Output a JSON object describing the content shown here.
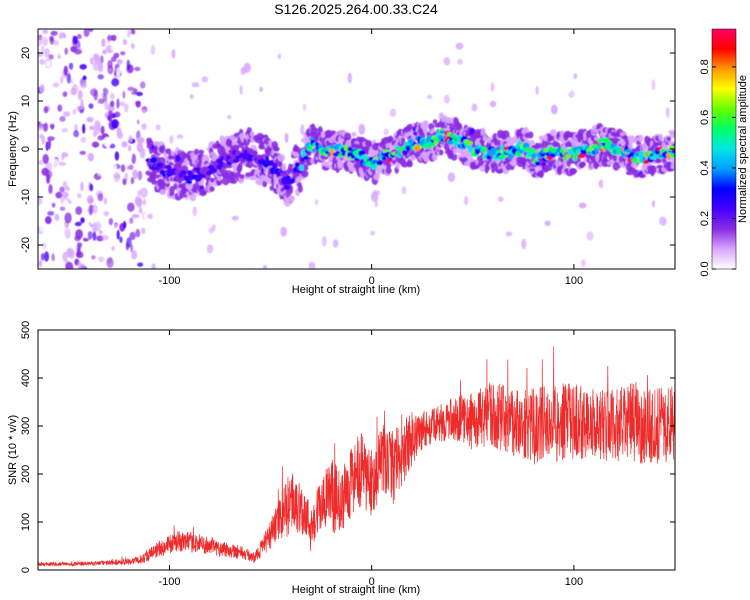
{
  "title": "S126.2025.264.00.33.C24",
  "chart_data": [
    {
      "type": "heatmap",
      "xlabel": "Height of straight line (km)",
      "ylabel": "Frequency (Hz)",
      "xlim": [
        -165,
        150
      ],
      "ylim": [
        -25,
        25
      ],
      "x_ticks": [
        -100,
        0,
        100
      ],
      "x_tick_labels": [
        "-100",
        "0",
        "100"
      ],
      "y_ticks": [
        -20,
        -10,
        0,
        10,
        20
      ],
      "y_tick_labels": [
        "-20",
        "-10",
        "0",
        "10",
        "20"
      ],
      "colorbar": {
        "label": "Normalized spectral amplitude",
        "range": [
          0,
          0.95
        ],
        "ticks": [
          0.0,
          0.2,
          0.4,
          0.6,
          0.8
        ],
        "tick_labels": [
          "0.0",
          "0.2",
          "0.4",
          "0.6",
          "0.8"
        ],
        "colors": [
          "#ffffff",
          "#d9a6ff",
          "#8a2be2",
          "#4400ff",
          "#0000ff",
          "#00a0ff",
          "#00e5e5",
          "#00ff66",
          "#66ff00",
          "#ffff00",
          "#ff9900",
          "#ff0000",
          "#ff0066"
        ]
      },
      "ridge_x": [
        -110,
        -100,
        -90,
        -80,
        -70,
        -60,
        -50,
        -42,
        -36,
        -30,
        -22,
        -15,
        -8,
        0,
        10,
        20,
        30,
        35,
        42,
        50,
        60,
        70,
        75,
        82,
        90,
        100,
        108,
        115,
        125,
        135,
        142,
        150
      ],
      "ridge_freq": [
        -3,
        -5,
        -6,
        -4,
        -2,
        -1,
        -3,
        -7,
        -4,
        1,
        -0.5,
        -0.5,
        -1,
        -3,
        -1,
        1,
        2,
        3,
        2,
        0,
        -1,
        -0.5,
        0.5,
        -2,
        -0.5,
        -1,
        0,
        1,
        -1,
        -2,
        -1,
        0
      ]
    },
    {
      "type": "line",
      "xlabel": "Height of straight line (km)",
      "ylabel": "SNR (10 * v/v)",
      "xlim": [
        -165,
        150
      ],
      "ylim": [
        0,
        500
      ],
      "x_ticks": [
        -100,
        0,
        100
      ],
      "x_tick_labels": [
        "-100",
        "0",
        "100"
      ],
      "y_ticks": [
        0,
        100,
        200,
        300,
        400,
        500
      ],
      "y_tick_labels": [
        "0",
        "100",
        "200",
        "300",
        "400",
        "500"
      ],
      "series": [
        {
          "name": "SNR",
          "color": "#ee2a2a",
          "x": [
            -165,
            -150,
            -130,
            -115,
            -105,
            -95,
            -85,
            -75,
            -65,
            -58,
            -52,
            -45,
            -40,
            -35,
            -30,
            -25,
            -20,
            -15,
            -10,
            -5,
            0,
            5,
            10,
            15,
            20,
            25,
            30,
            40,
            50,
            60,
            70,
            80,
            90,
            100,
            110,
            120,
            130,
            140,
            150
          ],
          "values": [
            12,
            12,
            15,
            20,
            45,
            60,
            55,
            45,
            38,
            25,
            60,
            110,
            140,
            130,
            95,
            135,
            155,
            140,
            190,
            200,
            180,
            230,
            210,
            240,
            275,
            290,
            300,
            315,
            310,
            325,
            310,
            300,
            305,
            310,
            305,
            300,
            308,
            300,
            305
          ],
          "amplitude": [
            4,
            4,
            5,
            8,
            18,
            22,
            20,
            18,
            15,
            10,
            25,
            45,
            70,
            55,
            45,
            60,
            80,
            60,
            80,
            85,
            70,
            75,
            80,
            65,
            60,
            45,
            35,
            45,
            60,
            70,
            70,
            80,
            85,
            80,
            75,
            75,
            85,
            80,
            80
          ]
        }
      ]
    }
  ]
}
